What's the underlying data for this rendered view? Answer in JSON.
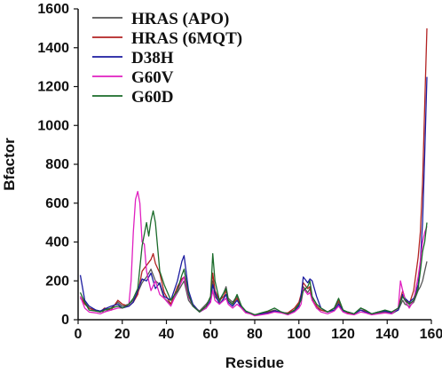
{
  "chart_data": {
    "type": "line",
    "title": "",
    "xlabel": "Residue",
    "ylabel": "Bfactor",
    "xlim": [
      0,
      160
    ],
    "ylim": [
      0,
      1600
    ],
    "grid": false,
    "legend_position": "top-left",
    "xticks": [
      "0",
      "20",
      "40",
      "60",
      "80",
      "100",
      "120",
      "140",
      "160"
    ],
    "yticks": [
      "0",
      "200",
      "400",
      "600",
      "800",
      "1000",
      "1200",
      "1400",
      "1600"
    ],
    "series": [
      {
        "name": "HRAS (APO)",
        "color": "#555555",
        "x": [
          1,
          3,
          5,
          8,
          10,
          12,
          15,
          18,
          20,
          23,
          25,
          27,
          29,
          31,
          33,
          35,
          37,
          39,
          42,
          45,
          47,
          48,
          50,
          52,
          55,
          58,
          60,
          61,
          62,
          64,
          66,
          67,
          68,
          70,
          72,
          74,
          76,
          78,
          80,
          83,
          86,
          89,
          92,
          95,
          98,
          100,
          101,
          102,
          104,
          105,
          106,
          108,
          110,
          113,
          116,
          118,
          120,
          122,
          125,
          128,
          130,
          133,
          136,
          139,
          142,
          145,
          147,
          148,
          150,
          152,
          154,
          155,
          156,
          157,
          158
        ],
        "values": [
          110,
          90,
          60,
          50,
          45,
          40,
          60,
          90,
          70,
          80,
          100,
          140,
          190,
          220,
          260,
          200,
          180,
          110,
          80,
          140,
          180,
          200,
          100,
          70,
          45,
          80,
          110,
          200,
          120,
          90,
          140,
          170,
          110,
          90,
          120,
          70,
          40,
          35,
          25,
          30,
          40,
          50,
          35,
          30,
          50,
          80,
          110,
          170,
          140,
          160,
          110,
          60,
          50,
          40,
          60,
          90,
          50,
          40,
          30,
          60,
          50,
          30,
          35,
          40,
          30,
          50,
          100,
          80,
          70,
          90,
          150,
          170,
          200,
          250,
          300
        ]
      },
      {
        "name": "HRAS (6MQT)",
        "color": "#b22222",
        "x": [
          1,
          3,
          5,
          8,
          10,
          12,
          15,
          18,
          20,
          23,
          25,
          27,
          29,
          31,
          33,
          34,
          35,
          37,
          39,
          42,
          45,
          47,
          48,
          50,
          52,
          55,
          58,
          60,
          61,
          62,
          64,
          66,
          67,
          68,
          70,
          72,
          74,
          76,
          78,
          80,
          83,
          86,
          89,
          92,
          95,
          98,
          100,
          101,
          102,
          104,
          105,
          106,
          108,
          110,
          113,
          116,
          118,
          120,
          122,
          125,
          128,
          130,
          133,
          136,
          139,
          142,
          145,
          147,
          148,
          150,
          152,
          154,
          155,
          156,
          157,
          158
        ],
        "values": [
          120,
          80,
          60,
          45,
          40,
          60,
          50,
          100,
          80,
          70,
          90,
          130,
          250,
          280,
          310,
          340,
          290,
          240,
          140,
          80,
          170,
          210,
          220,
          120,
          80,
          40,
          70,
          120,
          240,
          150,
          100,
          120,
          150,
          100,
          80,
          110,
          60,
          35,
          30,
          25,
          30,
          40,
          45,
          35,
          35,
          60,
          90,
          130,
          190,
          160,
          170,
          100,
          70,
          50,
          40,
          60,
          100,
          50,
          35,
          30,
          50,
          45,
          30,
          40,
          45,
          35,
          60,
          150,
          110,
          80,
          150,
          320,
          450,
          700,
          1100,
          1500
        ]
      },
      {
        "name": "D38H",
        "color": "#1c1ca0",
        "x": [
          1,
          3,
          5,
          8,
          10,
          12,
          15,
          18,
          20,
          23,
          25,
          27,
          29,
          31,
          33,
          35,
          37,
          39,
          42,
          45,
          47,
          48,
          50,
          52,
          55,
          58,
          60,
          61,
          62,
          64,
          66,
          67,
          68,
          70,
          72,
          74,
          76,
          78,
          80,
          83,
          86,
          89,
          92,
          95,
          98,
          100,
          101,
          102,
          104,
          105,
          106,
          108,
          110,
          113,
          116,
          118,
          120,
          122,
          125,
          128,
          130,
          133,
          136,
          139,
          142,
          145,
          147,
          148,
          150,
          152,
          154,
          155,
          156,
          157,
          158
        ],
        "values": [
          230,
          100,
          70,
          50,
          45,
          55,
          70,
          80,
          60,
          70,
          90,
          150,
          210,
          200,
          240,
          160,
          190,
          120,
          100,
          200,
          300,
          330,
          150,
          80,
          40,
          60,
          100,
          180,
          140,
          80,
          110,
          130,
          90,
          70,
          100,
          60,
          40,
          30,
          25,
          30,
          35,
          45,
          40,
          30,
          45,
          70,
          120,
          220,
          190,
          210,
          200,
          120,
          60,
          40,
          50,
          80,
          45,
          40,
          30,
          50,
          40,
          30,
          40,
          45,
          35,
          50,
          130,
          110,
          90,
          110,
          180,
          300,
          500,
          850,
          1250
        ]
      },
      {
        "name": "G60V",
        "color": "#e020c0",
        "x": [
          1,
          3,
          5,
          8,
          10,
          12,
          15,
          18,
          20,
          23,
          24,
          25,
          26,
          27,
          28,
          29,
          30,
          31,
          33,
          35,
          37,
          39,
          42,
          45,
          47,
          48,
          50,
          52,
          55,
          58,
          60,
          61,
          62,
          64,
          66,
          67,
          68,
          70,
          72,
          74,
          76,
          78,
          80,
          83,
          86,
          89,
          92,
          95,
          98,
          100,
          101,
          102,
          104,
          105,
          106,
          108,
          110,
          113,
          116,
          118,
          120,
          122,
          125,
          128,
          130,
          133,
          136,
          139,
          142,
          145,
          146,
          147,
          148,
          150,
          152,
          154,
          155,
          156,
          157,
          158
        ],
        "values": [
          120,
          60,
          40,
          35,
          30,
          40,
          50,
          60,
          60,
          80,
          200,
          450,
          620,
          660,
          600,
          400,
          390,
          250,
          150,
          200,
          130,
          110,
          70,
          150,
          200,
          220,
          120,
          70,
          40,
          60,
          90,
          150,
          100,
          80,
          100,
          110,
          80,
          60,
          80,
          60,
          35,
          30,
          20,
          25,
          30,
          40,
          35,
          25,
          40,
          60,
          80,
          160,
          130,
          140,
          100,
          60,
          40,
          30,
          45,
          70,
          40,
          30,
          25,
          40,
          35,
          25,
          30,
          35,
          30,
          60,
          200,
          150,
          100,
          60,
          100,
          220,
          300,
          400,
          450,
          480
        ]
      },
      {
        "name": "G60D",
        "color": "#1a6b2a",
        "x": [
          1,
          3,
          5,
          8,
          10,
          12,
          15,
          18,
          20,
          23,
          25,
          27,
          29,
          31,
          32,
          33,
          34,
          35,
          37,
          39,
          42,
          45,
          47,
          48,
          50,
          52,
          55,
          58,
          60,
          61,
          62,
          64,
          66,
          67,
          68,
          70,
          72,
          74,
          76,
          78,
          80,
          83,
          86,
          89,
          92,
          95,
          98,
          100,
          101,
          102,
          104,
          105,
          106,
          108,
          110,
          113,
          116,
          118,
          120,
          122,
          125,
          128,
          130,
          133,
          136,
          139,
          142,
          145,
          147,
          148,
          150,
          152,
          154,
          155,
          156,
          157,
          158
        ],
        "values": [
          140,
          90,
          50,
          45,
          40,
          50,
          60,
          70,
          60,
          80,
          110,
          160,
          380,
          500,
          430,
          510,
          560,
          500,
          250,
          180,
          100,
          150,
          230,
          260,
          130,
          70,
          40,
          70,
          120,
          340,
          200,
          100,
          140,
          160,
          100,
          80,
          130,
          70,
          45,
          35,
          25,
          35,
          45,
          60,
          40,
          30,
          50,
          80,
          100,
          150,
          170,
          200,
          120,
          80,
          60,
          40,
          60,
          110,
          50,
          40,
          30,
          60,
          50,
          30,
          40,
          50,
          40,
          60,
          120,
          100,
          80,
          100,
          160,
          250,
          350,
          400,
          500
        ]
      }
    ]
  }
}
